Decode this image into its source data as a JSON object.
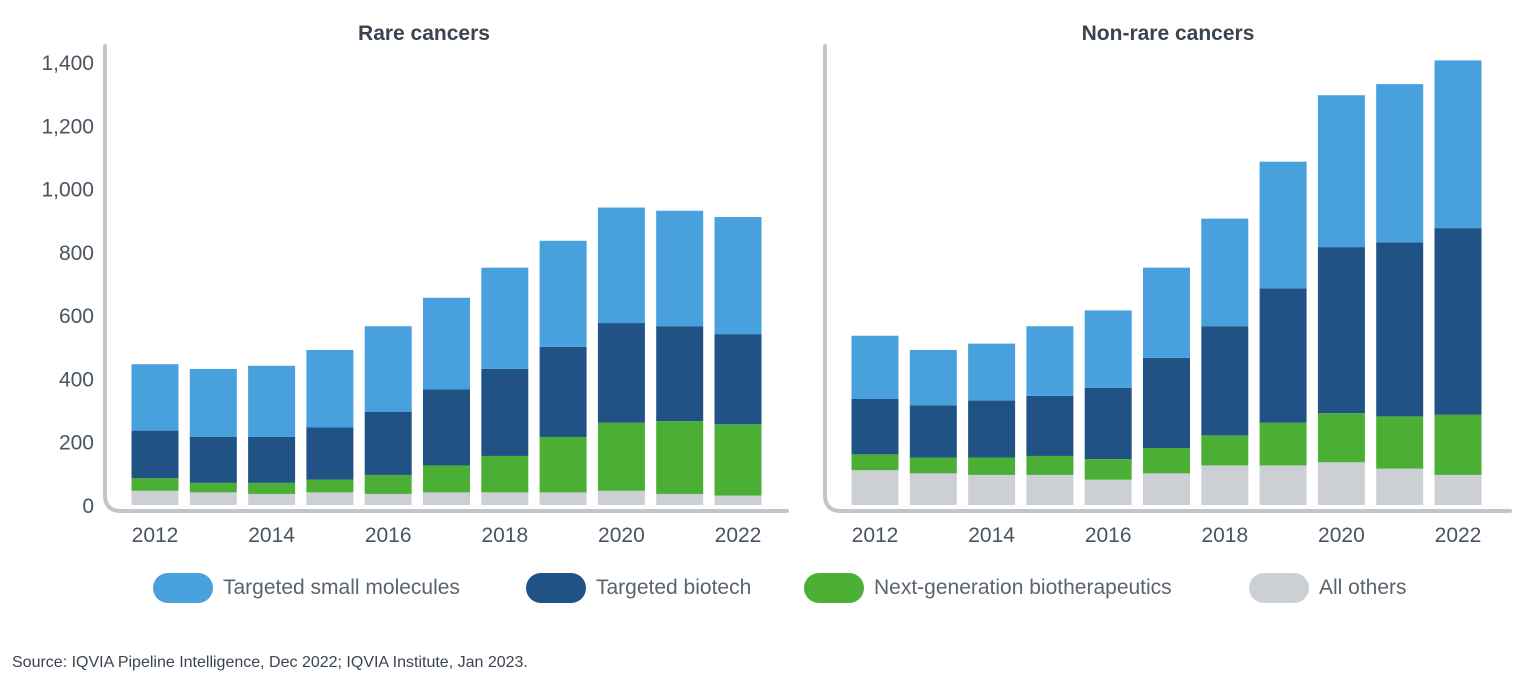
{
  "chart_data": [
    {
      "type": "bar",
      "stacked": true,
      "title": "Rare cancers",
      "categories": [
        "2012",
        "2013",
        "2014",
        "2015",
        "2016",
        "2017",
        "2018",
        "2019",
        "2020",
        "2021",
        "2022"
      ],
      "xticks": [
        "2012",
        "2014",
        "2016",
        "2018",
        "2020",
        "2022"
      ],
      "yticks": [
        "0",
        "200",
        "400",
        "600",
        "800",
        "1,000",
        "1,200",
        "1,400"
      ],
      "ylim": [
        0,
        1400
      ],
      "series": [
        {
          "name": "All others",
          "values": [
            45,
            40,
            35,
            40,
            35,
            40,
            40,
            40,
            45,
            35,
            30
          ]
        },
        {
          "name": "Next-generation biotherapeutics",
          "values": [
            40,
            30,
            35,
            40,
            60,
            85,
            115,
            175,
            215,
            230,
            225
          ]
        },
        {
          "name": "Targeted biotech",
          "values": [
            150,
            145,
            145,
            165,
            200,
            240,
            275,
            285,
            315,
            300,
            285
          ]
        },
        {
          "name": "Targeted small molecules",
          "values": [
            210,
            215,
            225,
            245,
            270,
            290,
            320,
            335,
            365,
            365,
            370
          ]
        }
      ]
    },
    {
      "type": "bar",
      "stacked": true,
      "title": "Non-rare cancers",
      "categories": [
        "2012",
        "2013",
        "2014",
        "2015",
        "2016",
        "2017",
        "2018",
        "2019",
        "2020",
        "2021",
        "2022"
      ],
      "xticks": [
        "2012",
        "2014",
        "2016",
        "2018",
        "2020",
        "2022"
      ],
      "ylim": [
        0,
        1400
      ],
      "series": [
        {
          "name": "All others",
          "values": [
            110,
            100,
            95,
            95,
            80,
            100,
            125,
            125,
            135,
            115,
            95
          ]
        },
        {
          "name": "Next-generation biotherapeutics",
          "values": [
            50,
            50,
            55,
            60,
            65,
            80,
            95,
            135,
            155,
            165,
            190
          ]
        },
        {
          "name": "Targeted biotech",
          "values": [
            175,
            165,
            180,
            190,
            225,
            285,
            345,
            425,
            525,
            550,
            590
          ]
        },
        {
          "name": "Targeted small molecules",
          "values": [
            200,
            175,
            180,
            220,
            245,
            285,
            340,
            400,
            480,
            500,
            530
          ]
        }
      ]
    }
  ],
  "colors": {
    "Targeted small molecules": "#48a0dc",
    "Targeted biotech": "#215285",
    "Next-generation biotherapeutics": "#4caf35",
    "All others": "#ccd0d4",
    "axis": "#c2c6ca",
    "tick_text": "#4a5460"
  },
  "legend": {
    "items": [
      {
        "label": "Targeted small molecules",
        "color": "#48a0dc"
      },
      {
        "label": "Targeted biotech",
        "color": "#215285"
      },
      {
        "label": "Next-generation biotherapeutics",
        "color": "#4caf35"
      },
      {
        "label": "All others",
        "color": "#ccd0d4"
      }
    ]
  },
  "source": "Source: IQVIA Pipeline Intelligence, Dec 2022; IQVIA Institute, Jan 2023."
}
